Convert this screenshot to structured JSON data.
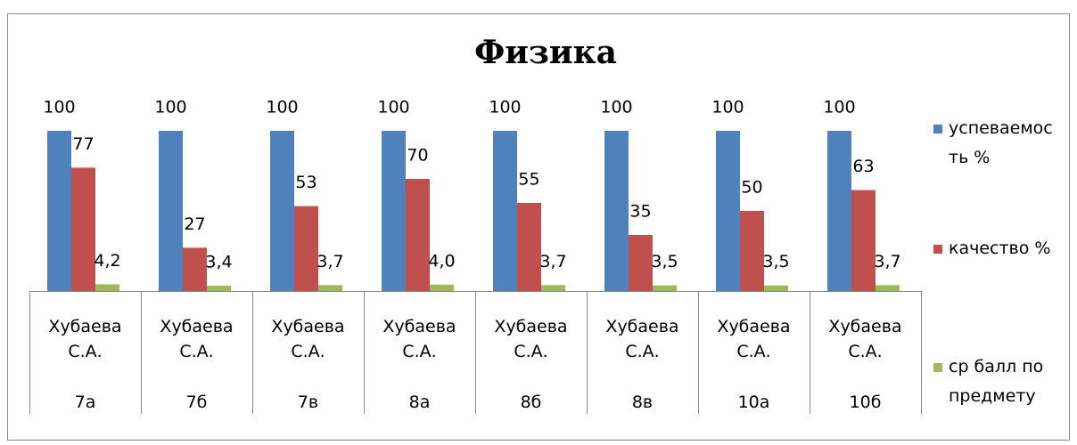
{
  "chart_data": {
    "type": "bar",
    "title": "Физика",
    "categories": [
      "7а",
      "7б",
      "7в",
      "8а",
      "8б",
      "8в",
      "10а",
      "10б"
    ],
    "category_groups": [
      "Хубаева С.А.",
      "Хубаева С.А.",
      "Хубаева С.А.",
      "Хубаева С.А.",
      "Хубаева С.А.",
      "Хубаева С.А.",
      "Хубаева С.А.",
      "Хубаева С.А."
    ],
    "ylim": [
      0,
      100
    ],
    "series": [
      {
        "name": "успеваемость %",
        "color": "#4F81BD",
        "values": [
          100,
          100,
          100,
          100,
          100,
          100,
          100,
          100
        ]
      },
      {
        "name": "качество %",
        "color": "#C0504D",
        "values": [
          77,
          27,
          53,
          70,
          55,
          35,
          50,
          63
        ]
      },
      {
        "name": "ср балл по предмету",
        "color": "#9BBB59",
        "values": [
          4.2,
          3.4,
          3.7,
          4.0,
          3.7,
          3.5,
          3.5,
          3.7
        ],
        "value_labels": [
          "4,2",
          "3,4",
          "3,7",
          "4,0",
          "3,7",
          "3,5",
          "3,5",
          "3,7"
        ]
      }
    ],
    "legend": "right"
  }
}
